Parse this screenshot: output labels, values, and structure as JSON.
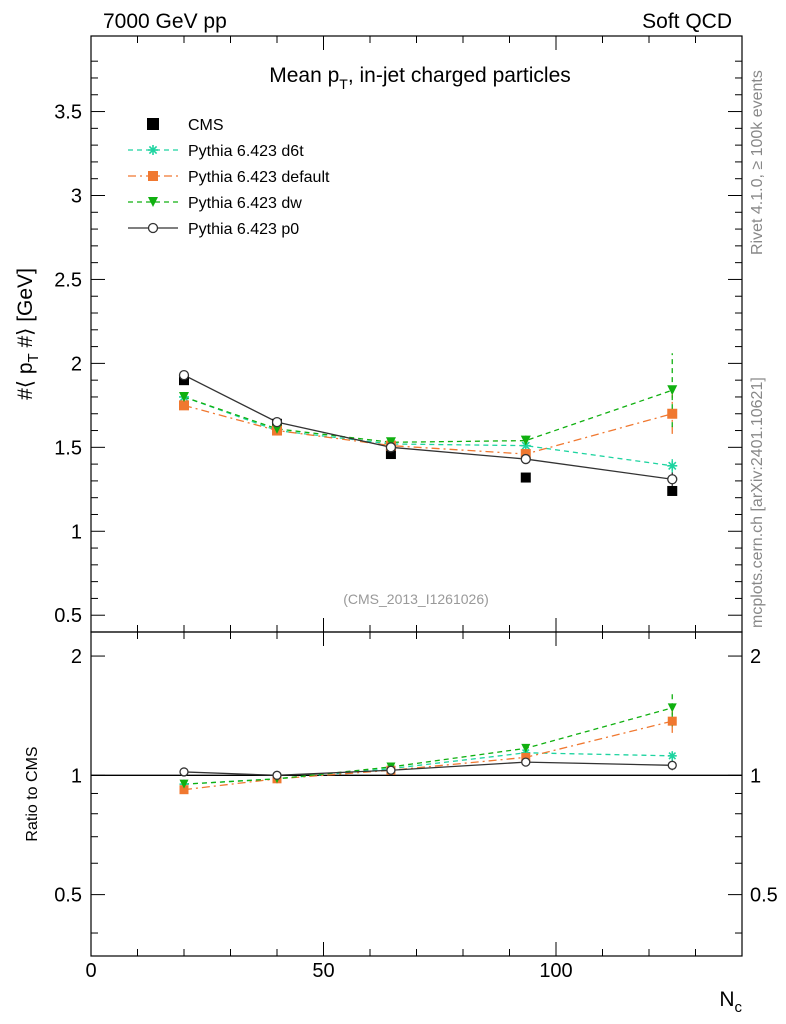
{
  "header": {
    "energy_label": "7000 GeV pp",
    "process_label": "Soft QCD",
    "source_label": "(CMS_2013_I1261026)"
  },
  "side_labels": {
    "rivet": "Rivet 4.1.0, ≥ 100k events",
    "mcplots": "mcplots.cern.ch [arXiv:2401.10621]"
  },
  "chart_data": [
    {
      "type": "line",
      "panel": "main",
      "title": "Mean p_T, in-jet charged particles",
      "ylabel": "#⟨ p_T #⟩ [GeV]",
      "xlabel": "N_ch",
      "xlim": [
        0,
        140
      ],
      "ylim": [
        0.4,
        3.95
      ],
      "yticks": [
        0.5,
        1,
        1.5,
        2,
        2.5,
        3,
        3.5
      ],
      "ytick_labels": [
        "0.5",
        "1",
        "1.5",
        "2",
        "2.5",
        "3",
        "3.5"
      ],
      "legend_position": "top-left",
      "series": [
        {
          "name": "CMS",
          "color": "#000000",
          "marker": "square",
          "line": "none",
          "x": [
            20,
            40,
            64.5,
            93.5,
            125
          ],
          "y": [
            1.9,
            1.64,
            1.46,
            1.32,
            1.24
          ],
          "err": [
            0,
            0,
            0,
            0,
            0
          ]
        },
        {
          "name": "Pythia 6.423 d6t",
          "color": "#1ed4a0",
          "marker": "star",
          "line": "dashed",
          "x": [
            20,
            40,
            64.5,
            93.5,
            125
          ],
          "y": [
            1.8,
            1.6,
            1.52,
            1.51,
            1.39
          ],
          "err": [
            0,
            0,
            0,
            0.02,
            0.04
          ]
        },
        {
          "name": "Pythia 6.423 default",
          "color": "#f07830",
          "marker": "square",
          "line": "dashdot",
          "x": [
            20,
            40,
            64.5,
            93.5,
            125
          ],
          "y": [
            1.75,
            1.6,
            1.51,
            1.46,
            1.7
          ],
          "err": [
            0,
            0,
            0,
            0.02,
            0.12
          ]
        },
        {
          "name": "Pythia 6.423 dw",
          "color": "#10b010",
          "marker": "triangle-down",
          "line": "dashed",
          "x": [
            20,
            40,
            64.5,
            93.5,
            125
          ],
          "y": [
            1.8,
            1.61,
            1.53,
            1.54,
            1.84
          ],
          "err": [
            0,
            0,
            0,
            0.03,
            0.22
          ]
        },
        {
          "name": "Pythia 6.423 p0",
          "color": "#333333",
          "marker": "circle-open",
          "line": "solid",
          "x": [
            20,
            40,
            64.5,
            93.5,
            125
          ],
          "y": [
            1.93,
            1.65,
            1.5,
            1.43,
            1.31
          ],
          "err": [
            0,
            0,
            0,
            0.02,
            0.04
          ]
        }
      ]
    },
    {
      "type": "line",
      "panel": "ratio",
      "ylabel": "Ratio to CMS",
      "xlabel": "N_ch",
      "xlim": [
        0,
        140
      ],
      "ylim": [
        0.35,
        2.3
      ],
      "yticks": [
        0.5,
        1,
        2
      ],
      "ytick_labels": [
        "0.5",
        "1",
        "2"
      ],
      "xticks": [
        0,
        50,
        100
      ],
      "xtick_labels": [
        "0",
        "50",
        "100"
      ],
      "reference_line": 1,
      "series": [
        {
          "name": "Pythia 6.423 d6t",
          "x": [
            20,
            40,
            64.5,
            93.5,
            125
          ],
          "y": [
            0.95,
            0.98,
            1.04,
            1.14,
            1.12
          ],
          "err": [
            0,
            0,
            0,
            0.02,
            0.03
          ]
        },
        {
          "name": "Pythia 6.423 default",
          "x": [
            20,
            40,
            64.5,
            93.5,
            125
          ],
          "y": [
            0.92,
            0.98,
            1.03,
            1.11,
            1.37
          ],
          "err": [
            0,
            0,
            0,
            0.02,
            0.09
          ]
        },
        {
          "name": "Pythia 6.423 dw",
          "x": [
            20,
            40,
            64.5,
            93.5,
            125
          ],
          "y": [
            0.95,
            0.98,
            1.05,
            1.17,
            1.48
          ],
          "err": [
            0,
            0,
            0,
            0.03,
            0.15
          ]
        },
        {
          "name": "Pythia 6.423 p0",
          "x": [
            20,
            40,
            64.5,
            93.5,
            125
          ],
          "y": [
            1.02,
            1.0,
            1.03,
            1.08,
            1.06
          ],
          "err": [
            0,
            0,
            0,
            0.02,
            0.03
          ]
        }
      ]
    }
  ]
}
